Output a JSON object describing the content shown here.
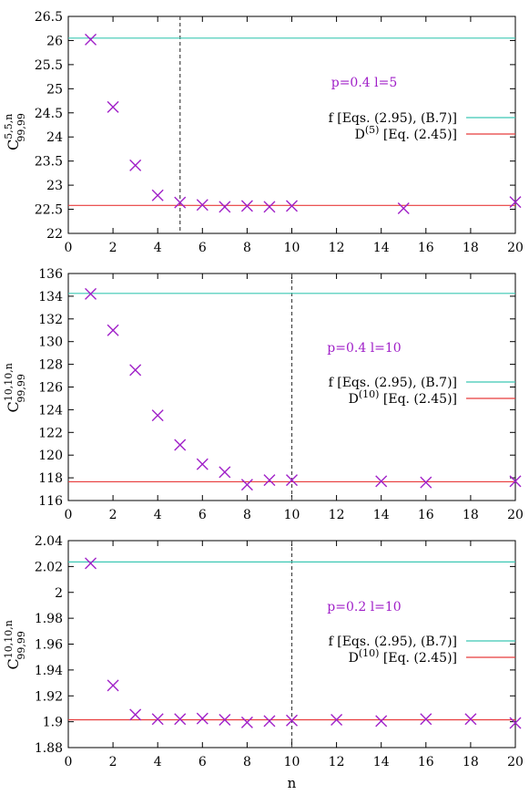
{
  "chart_data": [
    {
      "type": "scatter",
      "annotation": "p=0.4 l=5",
      "ylabel": {
        "base": "C",
        "sup": "5,5,n",
        "sub": "99,99"
      },
      "xlabel": "",
      "xlim": [
        0,
        20
      ],
      "ylim": [
        22,
        26.5
      ],
      "xticks": [
        "0",
        "2",
        "4",
        "6",
        "8",
        "10",
        "12",
        "14",
        "16",
        "18",
        "20"
      ],
      "yticks": [
        "22",
        "22.5",
        "23",
        "23.5",
        "24",
        "24.5",
        "25",
        "25.5",
        "26",
        "26.5"
      ],
      "vline_x": 5,
      "legend_position": "right-middle",
      "legend": [
        {
          "parts": [
            [
              "f [Eqs. (2.95), (B.7)]",
              ""
            ]
          ],
          "color": "#3cc8b4",
          "y": 26.05
        },
        {
          "parts": [
            [
              "D",
              ""
            ],
            [
              "(5)",
              "sup"
            ],
            [
              " [Eq. (2.45)]",
              ""
            ]
          ],
          "color": "#e83c3c",
          "y": 22.58
        }
      ],
      "series": [
        {
          "marker": "x",
          "color": "#a020c8",
          "x": [
            1,
            2,
            3,
            4,
            5,
            6,
            7,
            8,
            9,
            10,
            15,
            20
          ],
          "y": [
            26.02,
            24.62,
            23.41,
            22.79,
            22.64,
            22.59,
            22.55,
            22.57,
            22.55,
            22.57,
            22.52,
            22.65
          ]
        }
      ]
    },
    {
      "type": "scatter",
      "annotation": "p=0.4 l=10",
      "ylabel": {
        "base": "C",
        "sup": "10,10,n",
        "sub": "99,99"
      },
      "xlabel": "",
      "xlim": [
        0,
        20
      ],
      "ylim": [
        116,
        136
      ],
      "xticks": [
        "0",
        "2",
        "4",
        "6",
        "8",
        "10",
        "12",
        "14",
        "16",
        "18",
        "20"
      ],
      "yticks": [
        "116",
        "118",
        "120",
        "122",
        "124",
        "126",
        "128",
        "130",
        "132",
        "134",
        "136"
      ],
      "vline_x": 10,
      "legend_position": "right-middle",
      "legend": [
        {
          "parts": [
            [
              "f [Eqs. (2.95), (B.7)]",
              ""
            ]
          ],
          "color": "#3cc8b4",
          "y": 134.25
        },
        {
          "parts": [
            [
              "D",
              ""
            ],
            [
              "(10)",
              "sup"
            ],
            [
              " [Eq. (2.45)]",
              ""
            ]
          ],
          "color": "#e83c3c",
          "y": 117.65
        }
      ],
      "series": [
        {
          "marker": "x",
          "color": "#a020c8",
          "x": [
            1,
            2,
            3,
            4,
            5,
            6,
            7,
            8,
            9,
            10,
            14,
            16,
            20
          ],
          "y": [
            134.2,
            131.0,
            127.5,
            123.5,
            120.9,
            119.2,
            118.5,
            117.4,
            117.8,
            117.8,
            117.7,
            117.6,
            117.7
          ]
        }
      ]
    },
    {
      "type": "scatter",
      "annotation": "p=0.2 l=10",
      "ylabel": {
        "base": "C",
        "sup": "10,10,n",
        "sub": "99,99"
      },
      "xlabel": "n",
      "xlim": [
        0,
        20
      ],
      "ylim": [
        1.88,
        2.04
      ],
      "xticks": [
        "0",
        "2",
        "4",
        "6",
        "8",
        "10",
        "12",
        "14",
        "16",
        "18",
        "20"
      ],
      "yticks": [
        "1.88",
        "1.9",
        "1.92",
        "1.94",
        "1.96",
        "1.98",
        "2",
        "2.02",
        "2.04"
      ],
      "vline_x": 10,
      "legend_position": "right-middle",
      "legend": [
        {
          "parts": [
            [
              "f [Eqs. (2.95), (B.7)]",
              ""
            ]
          ],
          "color": "#3cc8b4",
          "y": 2.0235
        },
        {
          "parts": [
            [
              "D",
              ""
            ],
            [
              "(10)",
              "sup"
            ],
            [
              " [Eq. (2.45)]",
              ""
            ]
          ],
          "color": "#e83c3c",
          "y": 1.9015
        }
      ],
      "series": [
        {
          "marker": "x",
          "color": "#a020c8",
          "x": [
            1,
            2,
            3,
            4,
            5,
            6,
            7,
            8,
            9,
            10,
            12,
            14,
            16,
            18,
            20
          ],
          "y": [
            2.0225,
            1.928,
            1.9055,
            1.902,
            1.902,
            1.9025,
            1.9015,
            1.8995,
            1.9005,
            1.901,
            1.9015,
            1.9005,
            1.902,
            1.902,
            1.899
          ]
        }
      ]
    }
  ],
  "colors": {
    "annotation": "#a020c8",
    "axes": "#000000",
    "vline": "#444444"
  }
}
